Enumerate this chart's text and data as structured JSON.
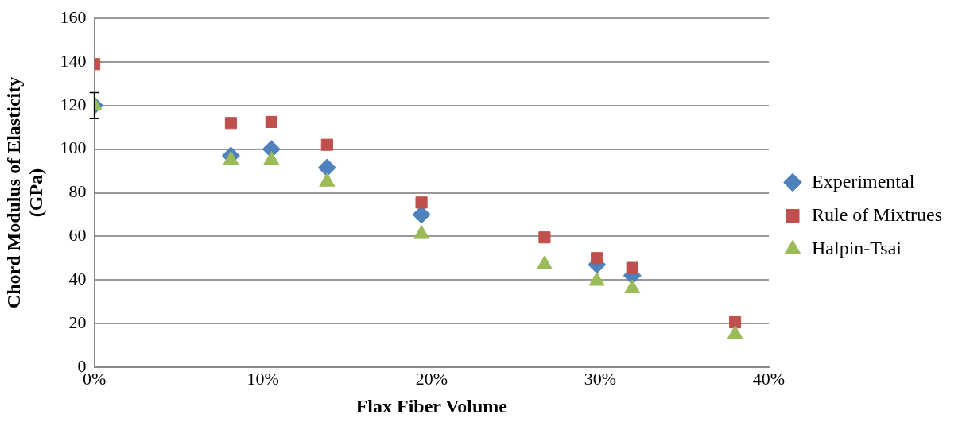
{
  "chart_data": {
    "type": "scatter",
    "xlabel": "Flax Fiber Volume",
    "ylabel": "Chord Modulus of Elasticity (GPa)",
    "x": [
      0,
      8.1,
      10.5,
      13.8,
      19.4,
      26.7,
      29.8,
      31.9,
      38.0
    ],
    "series": [
      {
        "name": "Experimental",
        "color": "#4f81bd",
        "marker": "diamond",
        "values": [
          120,
          97,
          100,
          91.5,
          70,
          null,
          47,
          42,
          null
        ],
        "errors": [
          6,
          null,
          null,
          null,
          null,
          null,
          null,
          null,
          null
        ]
      },
      {
        "name": "Rule of Mixtrues",
        "color": "#c0504d",
        "marker": "square",
        "values": [
          139,
          112,
          112.5,
          102,
          75.5,
          59.5,
          50,
          45.5,
          20.5
        ]
      },
      {
        "name": "Halpin-Tsai",
        "color": "#9bbb59",
        "marker": "triangle",
        "values": [
          120,
          95,
          95,
          85,
          61,
          47,
          39.5,
          36,
          15
        ]
      }
    ],
    "xlim": [
      0,
      40
    ],
    "xticks": [
      {
        "value": 0,
        "label": "0%"
      },
      {
        "value": 10,
        "label": "10%"
      },
      {
        "value": 20,
        "label": "20%"
      },
      {
        "value": 30,
        "label": "30%"
      },
      {
        "value": 40,
        "label": "40%"
      }
    ],
    "ylim": [
      0,
      160
    ],
    "yticks": [
      0,
      20,
      40,
      60,
      80,
      100,
      120,
      140,
      160
    ],
    "grid": "y",
    "legend": "right"
  }
}
